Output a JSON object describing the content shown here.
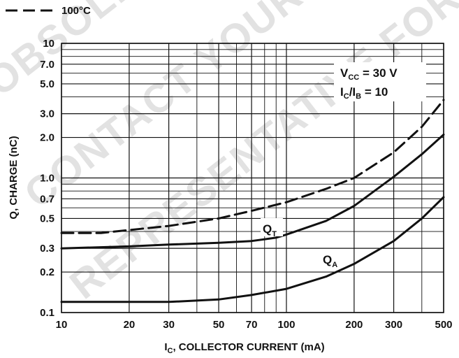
{
  "legend": {
    "label": "100°C",
    "style": "dashed"
  },
  "watermark": {
    "lines": [
      "OBSOLETE OR",
      "CONTACT YOUR ON",
      "REPRESENTATIVE FOR INFORMATION"
    ]
  },
  "conditions": {
    "vcc": {
      "main": "V",
      "sub": "CC",
      "rest": " = 30 V"
    },
    "ratio": {
      "a": "I",
      "a_sub": "C",
      "slash": "/I",
      "b_sub": "B",
      "rest": " = 10"
    }
  },
  "chart_data": {
    "type": "line",
    "xscale": "log",
    "yscale": "log",
    "xlim": [
      10,
      500
    ],
    "ylim": [
      0.1,
      10
    ],
    "xlabel": {
      "main": "I",
      "sub": "C",
      "rest": ", COLLECTOR CURRENT (mA)"
    },
    "ylabel": "Q, CHARGE (nC)",
    "x_ticks": [
      10,
      20,
      30,
      50,
      70,
      100,
      200,
      300,
      500
    ],
    "x_tick_labels": [
      "10",
      "20",
      "30",
      "50",
      "70",
      "100",
      "200",
      "300",
      "500"
    ],
    "y_ticks": [
      0.1,
      0.2,
      0.3,
      0.5,
      0.7,
      1.0,
      2.0,
      3.0,
      5.0,
      7.0,
      10
    ],
    "y_tick_labels": [
      "0.1",
      "0.2",
      "0.3",
      "0.5",
      "0.7",
      "1.0",
      "2.0",
      "3.0",
      "5.0",
      "7.0",
      "10"
    ],
    "grid": true,
    "series": [
      {
        "label_main": "Q",
        "label_sub": "T",
        "style": "solid",
        "x": [
          10,
          20,
          30,
          50,
          70,
          90,
          100,
          150,
          200,
          300,
          400,
          500
        ],
        "y": [
          0.3,
          0.31,
          0.32,
          0.33,
          0.34,
          0.36,
          0.38,
          0.48,
          0.62,
          1.02,
          1.5,
          2.1
        ]
      },
      {
        "label_main": "Q",
        "label_sub": "A",
        "style": "solid",
        "x": [
          10,
          20,
          30,
          50,
          70,
          100,
          150,
          200,
          300,
          400,
          500
        ],
        "y": [
          0.12,
          0.12,
          0.12,
          0.125,
          0.135,
          0.15,
          0.185,
          0.23,
          0.34,
          0.5,
          0.72
        ]
      },
      {
        "label_main": "",
        "label_sub": "",
        "style": "dashed",
        "legend": "100°C",
        "x": [
          10,
          15,
          20,
          30,
          50,
          70,
          100,
          150,
          200,
          300,
          400,
          500
        ],
        "y": [
          0.39,
          0.39,
          0.41,
          0.44,
          0.5,
          0.57,
          0.66,
          0.83,
          1.0,
          1.55,
          2.4,
          3.8
        ]
      }
    ]
  }
}
